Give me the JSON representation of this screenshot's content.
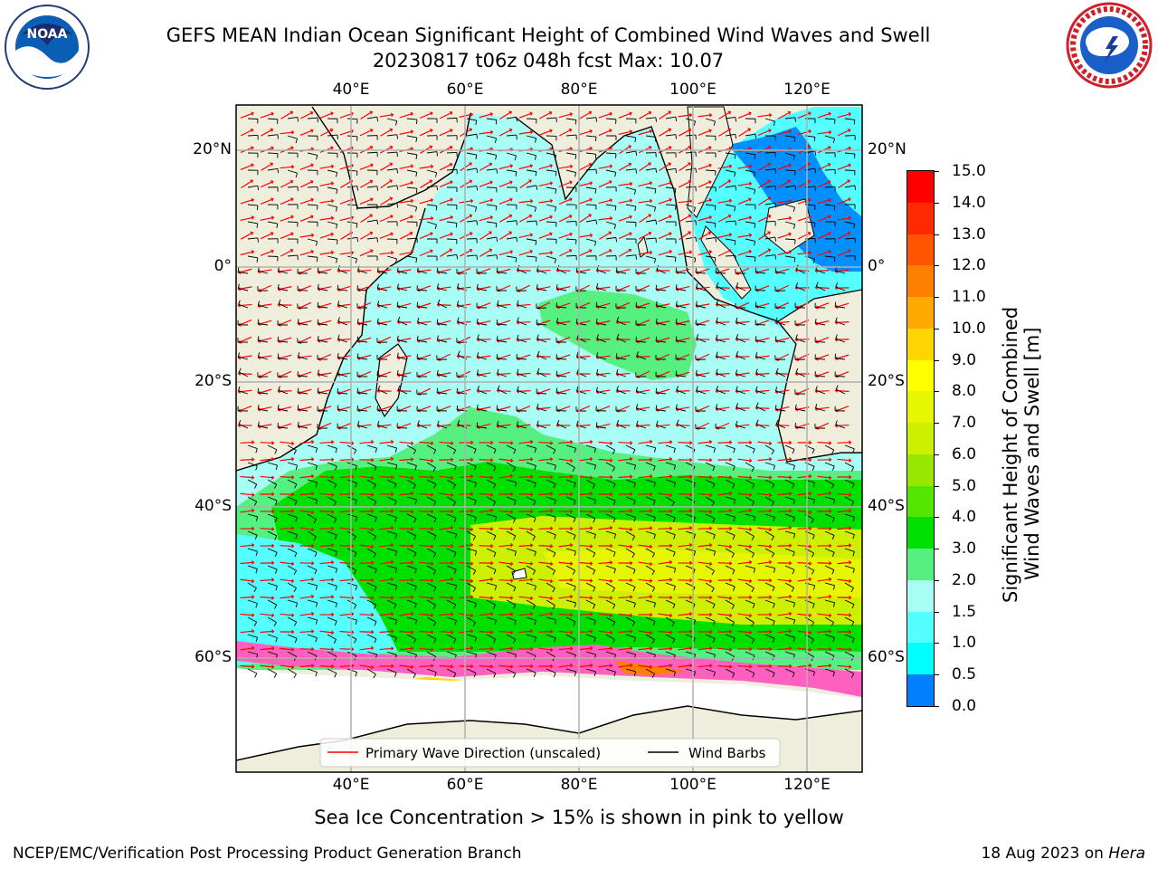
{
  "header": {
    "title_line1": "GEFS MEAN Indian Ocean Significant Height of Combined Wind Waves and Swell",
    "title_line2": "20230817 t06z 048h fcst   Max: 10.07",
    "left_logo_text": "NOAA",
    "left_logo_ring": "NATIONAL OCEANIC AND ATMOSPHERIC ADMINISTRATION · U.S. DEPARTMENT OF COMMERCE",
    "right_logo_ring": "NATIONAL WEATHER SERVICE"
  },
  "map": {
    "lon_ticks": [
      "40°E",
      "60°E",
      "80°E",
      "100°E",
      "120°E"
    ],
    "lon_values": [
      40,
      60,
      80,
      100,
      120
    ],
    "lat_ticks_left": [
      "20°N",
      "0°",
      "20°S",
      "40°S",
      "60°S"
    ],
    "lat_ticks_right": [
      "20°N",
      "0°",
      "20°S",
      "40°S",
      "60°S"
    ],
    "lat_values": [
      20,
      0,
      -20,
      -40,
      -60
    ],
    "legend": [
      {
        "label": "Primary Wave Direction (unscaled)",
        "color": "#ff0000"
      },
      {
        "label": "Wind Barbs",
        "color": "#000000"
      }
    ]
  },
  "colorbar": {
    "label_line1": "Significant Height of Combined",
    "label_line2": "Wind Waves and Swell [m]",
    "ticks": [
      "15.0",
      "14.0",
      "13.0",
      "12.0",
      "11.0",
      "10.0",
      "9.0",
      "8.0",
      "7.0",
      "6.0",
      "5.0",
      "4.0",
      "3.0",
      "2.0",
      "1.5",
      "1.0",
      "0.5",
      "0.0"
    ],
    "colors": [
      "#ff0000",
      "#ff2a00",
      "#ff5500",
      "#ff8000",
      "#ffaa00",
      "#ffd500",
      "#ffff00",
      "#e6f500",
      "#ccf000",
      "#99e600",
      "#55e600",
      "#00e000",
      "#55f080",
      "#a8fdf5",
      "#55ffff",
      "#00ffff",
      "#0080ff",
      "#0000ff"
    ]
  },
  "annotations": {
    "sea_ice_note": "Sea Ice Concentration > 15% is shown in pink to yellow",
    "footer_left": "NCEP/EMC/Verification Post Processing Product Generation Branch",
    "footer_right_prefix": "18 Aug 2023 on ",
    "footer_right_host": "Hera"
  }
}
